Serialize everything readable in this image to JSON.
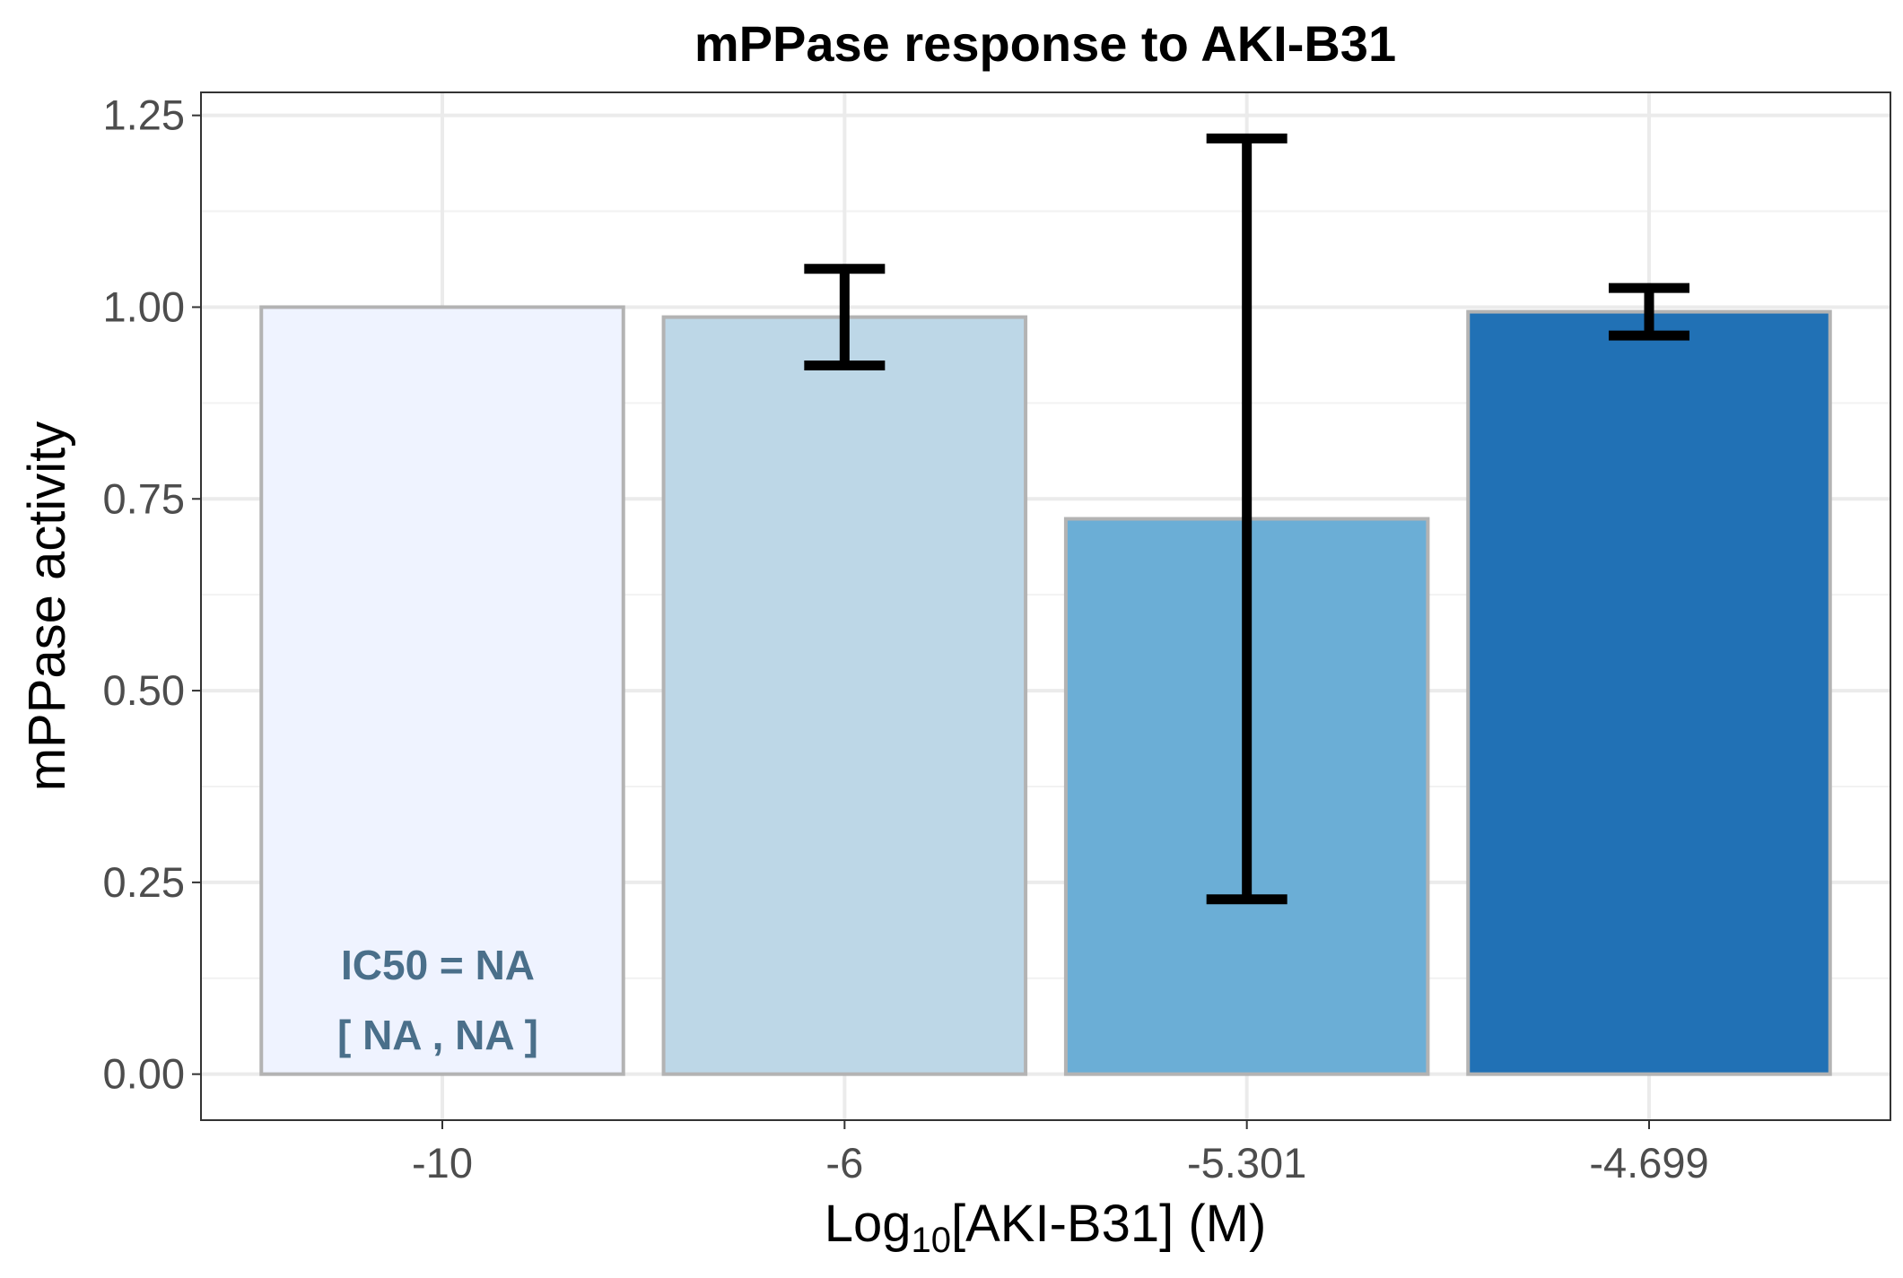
{
  "chart_data": {
    "type": "bar",
    "title": "mPPase response to AKI-B31",
    "xlabel": {
      "prefix": "Log",
      "subscript": "10",
      "suffix": "[AKI-B31] (M)"
    },
    "ylabel": "mPPase activity",
    "categories": [
      "-10",
      "-6",
      "-5.301",
      "-4.699"
    ],
    "values": [
      1.0,
      0.987,
      0.724,
      0.994
    ],
    "error_low": [
      null,
      0.924,
      0.228,
      0.963
    ],
    "error_high": [
      null,
      1.05,
      1.22,
      1.025
    ],
    "bar_colors": [
      "#eff3ff",
      "#bdd7e7",
      "#6baed6",
      "#2171b5"
    ],
    "bar_outline": "#b3b3b3",
    "ylim": [
      -0.06,
      1.28
    ],
    "yticks": [
      0,
      0.25,
      0.5,
      0.75,
      1.0,
      1.25
    ],
    "ytick_labels": [
      "0.00",
      "0.25",
      "0.50",
      "0.75",
      "1.00",
      "1.25"
    ],
    "grid": true,
    "annotation": {
      "line1": "IC50 = NA",
      "line2": "[ NA , NA ]",
      "color": "#4a6f8a"
    }
  }
}
